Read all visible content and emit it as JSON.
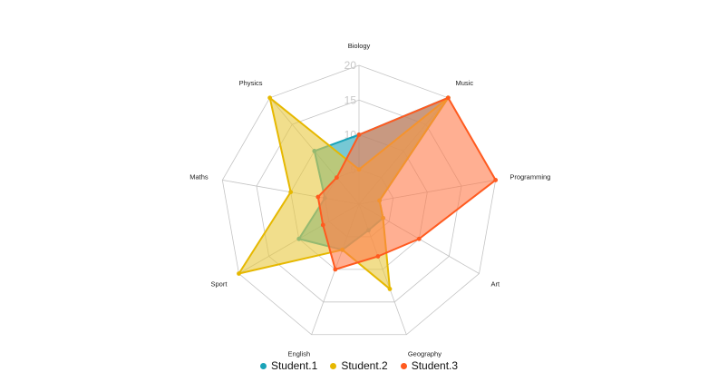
{
  "chart_data": {
    "type": "radar",
    "axes": [
      "Biology",
      "Music",
      "Programming",
      "Art",
      "Geography",
      "English",
      "Sport",
      "Maths",
      "Physics"
    ],
    "r_ticks": [
      "5",
      "10",
      "15",
      "20"
    ],
    "r_max": 20,
    "grid": true,
    "legend_position": "bottom",
    "series": [
      {
        "name": "Student.1",
        "color": "#1aa3b8",
        "fill": "#1aa3b8",
        "values": [
          10,
          20,
          3,
          4,
          4,
          7,
          10,
          5,
          10
        ]
      },
      {
        "name": "Student.2",
        "color": "#e6b800",
        "fill": "#e8c840",
        "values": [
          5,
          20,
          3,
          4,
          13,
          7,
          20,
          10,
          20
        ]
      },
      {
        "name": "Student.3",
        "color": "#ff5a1f",
        "fill": "#ff7a4a",
        "values": [
          10,
          20,
          20,
          10,
          8,
          10,
          6,
          6,
          5
        ]
      }
    ]
  }
}
